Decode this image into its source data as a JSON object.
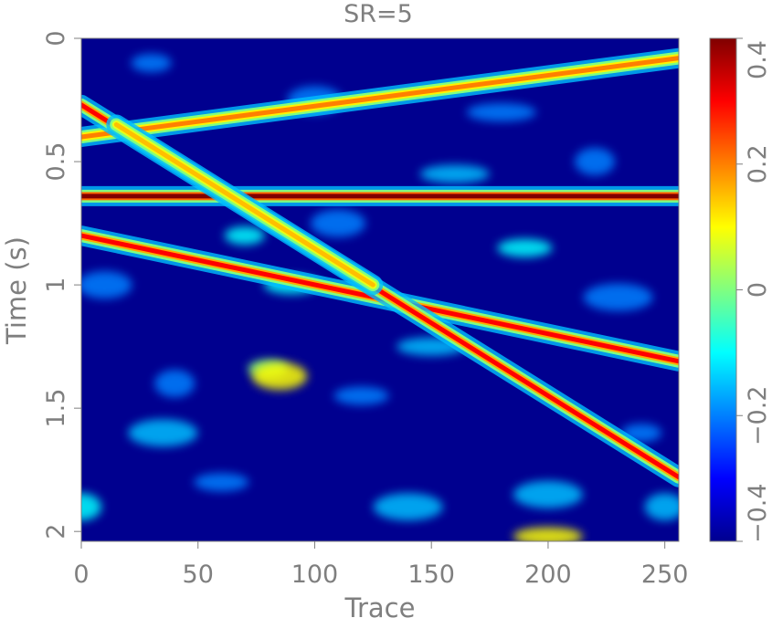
{
  "chart_data": {
    "type": "heatmap",
    "title": "SR=5",
    "xlabel": "Trace",
    "ylabel": "Time (s)",
    "xlim": [
      0,
      256
    ],
    "ylim": [
      2.04,
      0
    ],
    "x_ticks": [
      0,
      50,
      100,
      150,
      200,
      250
    ],
    "x_tick_labels": [
      "0",
      "50",
      "100",
      "150",
      "200",
      "250"
    ],
    "y_ticks": [
      0,
      0.5,
      1,
      1.5,
      2
    ],
    "y_tick_labels": [
      "0",
      "0.5",
      "1",
      "1.5",
      "2"
    ],
    "colorbar": {
      "range": [
        -0.4,
        0.4
      ],
      "ticks": [
        0.4,
        0.2,
        0,
        -0.2,
        -0.4
      ],
      "tick_labels": [
        "0.4",
        "0.2",
        "0",
        "−0.2",
        "−0.4"
      ],
      "colormap": "jet"
    },
    "background_value": -0.4,
    "events": [
      {
        "kind": "line",
        "from": [
          0,
          0.64
        ],
        "to": [
          256,
          0.64
        ],
        "amplitude": 0.4
      },
      {
        "kind": "line",
        "from": [
          0,
          0.4
        ],
        "to": [
          256,
          0.08
        ],
        "amplitude": 0.2
      },
      {
        "kind": "line",
        "from": [
          0,
          0.8
        ],
        "to": [
          256,
          1.31
        ],
        "amplitude": 0.3
      },
      {
        "kind": "line",
        "from": [
          0,
          0.27
        ],
        "to": [
          256,
          1.78
        ],
        "amplitude": 0.3
      },
      {
        "kind": "line",
        "from": [
          15,
          0.35
        ],
        "to": [
          125,
          1.0
        ],
        "amplitude": 0.15
      }
    ],
    "noise_patches": [
      [
        80,
        1.34,
        0.0
      ],
      [
        85,
        1.37,
        0.1
      ],
      [
        200,
        2.02,
        0.1
      ],
      [
        0,
        1.9,
        -0.1
      ],
      [
        190,
        0.85,
        -0.1
      ],
      [
        230,
        1.05,
        -0.2
      ],
      [
        70,
        0.8,
        -0.1
      ],
      [
        110,
        0.75,
        -0.2
      ],
      [
        150,
        1.25,
        -0.15
      ],
      [
        40,
        1.4,
        -0.2
      ],
      [
        120,
        1.45,
        -0.2
      ],
      [
        200,
        1.85,
        -0.15
      ],
      [
        30,
        0.1,
        -0.2
      ],
      [
        100,
        0.25,
        -0.2
      ],
      [
        160,
        0.55,
        -0.15
      ],
      [
        220,
        0.5,
        -0.2
      ],
      [
        60,
        1.8,
        -0.2
      ],
      [
        140,
        1.9,
        -0.15
      ],
      [
        240,
        1.6,
        -0.2
      ],
      [
        10,
        1.0,
        -0.2
      ],
      [
        180,
        0.3,
        -0.2
      ],
      [
        250,
        1.9,
        -0.15
      ],
      [
        90,
        1.0,
        -0.1
      ],
      [
        35,
        1.6,
        -0.15
      ]
    ]
  }
}
